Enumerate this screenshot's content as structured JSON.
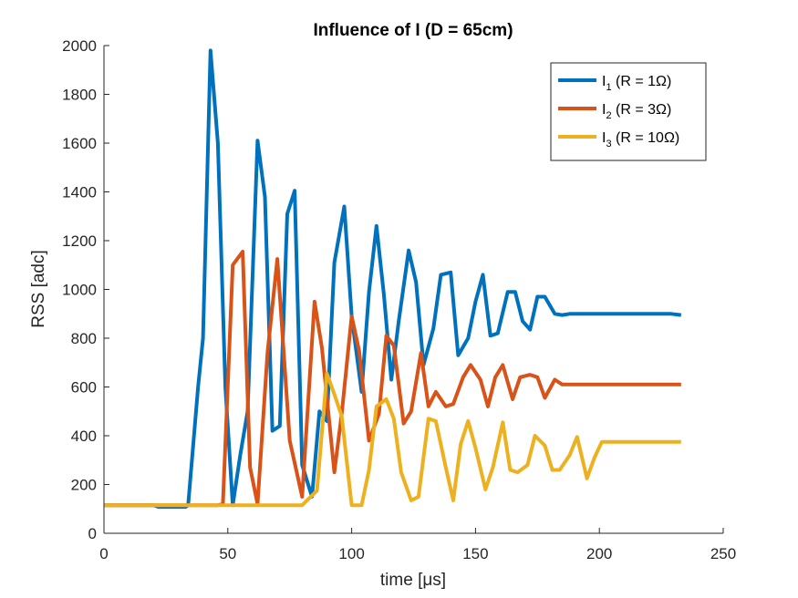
{
  "chart_data": {
    "type": "line",
    "title": "Influence of I (D = 65cm)",
    "xlabel": "time [μs]",
    "ylabel": "RSS [adc]",
    "xlim": [
      0,
      250
    ],
    "ylim": [
      0,
      2000
    ],
    "xticks": [
      0,
      50,
      100,
      150,
      200,
      250
    ],
    "yticks": [
      0,
      200,
      400,
      600,
      800,
      1000,
      1200,
      1400,
      1600,
      1800,
      2000
    ],
    "grid": false,
    "legend_position": "top-right",
    "series": [
      {
        "name": "I1 (R = 1Ω)",
        "label_main": "I",
        "label_sub": "1",
        "label_rest": " (R = 1Ω)",
        "color": "#0072BD",
        "x": [
          0,
          20,
          22,
          33,
          34,
          38,
          40,
          43,
          46,
          49,
          52,
          55,
          58,
          62,
          65,
          68,
          71,
          74,
          77,
          80,
          84,
          87,
          90,
          93,
          97,
          100,
          104,
          107,
          110,
          113,
          116,
          119,
          123,
          126,
          129,
          133,
          136,
          140,
          143,
          147,
          150,
          153,
          156,
          159,
          163,
          166,
          169,
          172,
          175,
          178,
          182,
          185,
          188,
          192,
          195,
          198,
          202,
          205,
          208,
          211,
          215,
          218,
          222,
          226,
          229,
          233
        ],
        "y": [
          115,
          115,
          108,
          108,
          115,
          600,
          800,
          1980,
          1600,
          600,
          115,
          320,
          500,
          1610,
          1380,
          420,
          440,
          1310,
          1405,
          280,
          150,
          500,
          460,
          1110,
          1340,
          890,
          580,
          990,
          1260,
          980,
          630,
          870,
          1160,
          1030,
          690,
          840,
          1060,
          1070,
          730,
          800,
          950,
          1060,
          810,
          820,
          990,
          990,
          870,
          835,
          970,
          970,
          900,
          895,
          900,
          900,
          900,
          900,
          900,
          900,
          900,
          900,
          900,
          900,
          900,
          900,
          900,
          895
        ]
      },
      {
        "name": "I2 (R = 3Ω)",
        "label_main": "I",
        "label_sub": "2",
        "label_rest": " (R = 3Ω)",
        "color": "#D95319",
        "x": [
          0,
          46,
          48,
          52,
          56,
          59,
          62,
          66,
          70,
          75,
          80,
          85,
          88,
          93,
          96,
          100,
          103,
          107,
          111,
          114,
          117,
          121,
          124,
          128,
          131,
          134,
          138,
          141,
          145,
          148,
          152,
          155,
          158,
          161,
          165,
          168,
          172,
          175,
          178,
          182,
          185,
          189,
          192,
          196,
          199,
          203,
          206,
          209,
          213,
          216,
          220,
          223,
          226,
          230,
          233
        ],
        "y": [
          115,
          115,
          120,
          1100,
          1155,
          270,
          120,
          740,
          1125,
          380,
          150,
          950,
          760,
          250,
          490,
          890,
          750,
          380,
          490,
          810,
          770,
          450,
          500,
          740,
          520,
          580,
          520,
          530,
          640,
          690,
          630,
          520,
          640,
          690,
          550,
          640,
          650,
          640,
          555,
          630,
          610,
          610,
          610,
          610,
          610,
          610,
          610,
          610,
          610,
          610,
          610,
          610,
          610,
          610,
          610
        ]
      },
      {
        "name": "I3 (R = 10Ω)",
        "label_main": "I",
        "label_sub": "3",
        "label_rest": " (R = 10Ω)",
        "color": "#EDB120",
        "x": [
          0,
          80,
          86,
          90,
          93,
          96,
          100,
          104,
          107,
          110,
          114,
          117,
          120,
          124,
          127,
          131,
          134,
          138,
          141,
          144,
          147,
          150,
          154,
          157,
          161,
          164,
          167,
          171,
          174,
          178,
          181,
          184,
          188,
          191,
          195,
          198,
          201,
          205,
          208,
          212,
          215,
          218,
          222,
          225,
          229,
          233
        ],
        "y": [
          115,
          115,
          175,
          655,
          570,
          480,
          115,
          115,
          260,
          520,
          550,
          470,
          250,
          135,
          150,
          470,
          460,
          270,
          135,
          365,
          460,
          350,
          180,
          270,
          455,
          260,
          250,
          280,
          400,
          360,
          260,
          260,
          320,
          395,
          225,
          310,
          375,
          375,
          375,
          375,
          375,
          375,
          375,
          375,
          375,
          375
        ]
      }
    ]
  }
}
